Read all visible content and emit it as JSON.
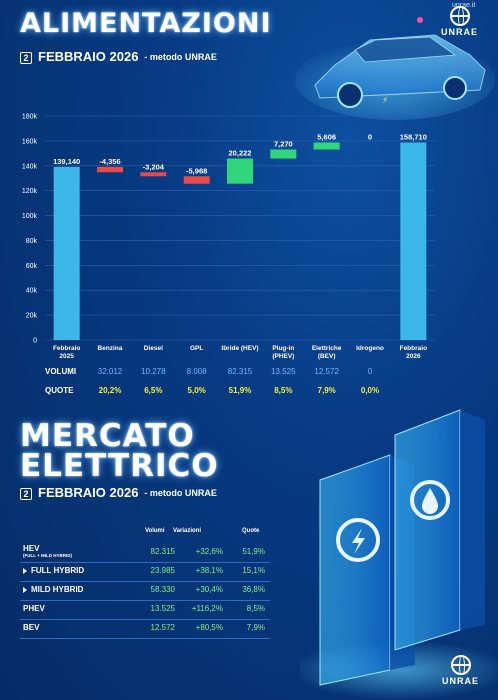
{
  "header": {
    "title": "ALIMENTAZIONI",
    "month": "FEBBRAIO 2026",
    "method": "- metodo UNRAE",
    "calendar_day": "2",
    "url": "unrae.it",
    "logo": "UNRAE"
  },
  "chart_data": {
    "type": "waterfall",
    "categories": [
      "Febbraio 2025",
      "Benzina",
      "Diesel",
      "GPL",
      "Ibride (HEV)",
      "Plug-in (PHEV)",
      "Elettriche (BEV)",
      "Idrogeno",
      "Febbraio 2026"
    ],
    "category_lines": [
      [
        "Febbraio",
        "2025"
      ],
      [
        "Benzina"
      ],
      [
        "Diesel"
      ],
      [
        "GPL"
      ],
      [
        "Ibride (HEV)"
      ],
      [
        "Plug-in",
        "(PHEV)"
      ],
      [
        "Elettriche",
        "(BEV)"
      ],
      [
        "Idrogeno"
      ],
      [
        "Febbraio",
        "2026"
      ]
    ],
    "values": [
      139140,
      -4356,
      -3204,
      -5968,
      20222,
      7270,
      5606,
      0,
      158710
    ],
    "value_labels": [
      "139,140",
      "-4,356",
      "-3,204",
      "-5,968",
      "20,222",
      "7,270",
      "5,606",
      "0",
      "158,710"
    ],
    "yticks": [
      "0",
      "20k",
      "40k",
      "60k",
      "80k",
      "100k",
      "120k",
      "140k",
      "160k",
      "180k"
    ],
    "ylim": [
      0,
      180000
    ],
    "colors": {
      "total": "#3bb8e8",
      "decrease": "#e84a4a",
      "increase": "#2fd67a",
      "grid": "#2c63b0"
    }
  },
  "rows": {
    "volumi_label": "VOLUMI",
    "volumi": [
      "32.012",
      "10.278",
      "8.008",
      "82.315",
      "13.525",
      "12.572",
      "0"
    ],
    "quote_label": "QUOTE",
    "quote": [
      "20,2%",
      "6,5%",
      "5,0%",
      "51,9%",
      "8,5%",
      "7,9%",
      "0,0%"
    ]
  },
  "mercato": {
    "title_line1": "MERCATO",
    "title_line2": "ELETTRICO",
    "month": "FEBBRAIO 2026",
    "method": "- metodo UNRAE",
    "calendar_day": "2",
    "headers": [
      "Volumi",
      "Variazioni",
      "Quote"
    ],
    "rows": [
      {
        "name": "HEV",
        "sub": "(FULL + MILD HYBRID)",
        "arrow": false,
        "volumi": "82.315",
        "variazioni": "+32,6%",
        "quote": "51,9%"
      },
      {
        "name": "FULL HYBRID",
        "sub": "",
        "arrow": true,
        "volumi": "23.985",
        "variazioni": "+38,1%",
        "quote": "15,1%"
      },
      {
        "name": "MILD HYBRID",
        "sub": "",
        "arrow": true,
        "volumi": "58.330",
        "variazioni": "+30,4%",
        "quote": "36,8%"
      },
      {
        "name": "PHEV",
        "sub": "",
        "arrow": false,
        "volumi": "13.525",
        "variazioni": "+116,2%",
        "quote": "8,5%"
      },
      {
        "name": "BEV",
        "sub": "",
        "arrow": false,
        "volumi": "12.572",
        "variazioni": "+80,5%",
        "quote": "7,9%"
      }
    ]
  }
}
